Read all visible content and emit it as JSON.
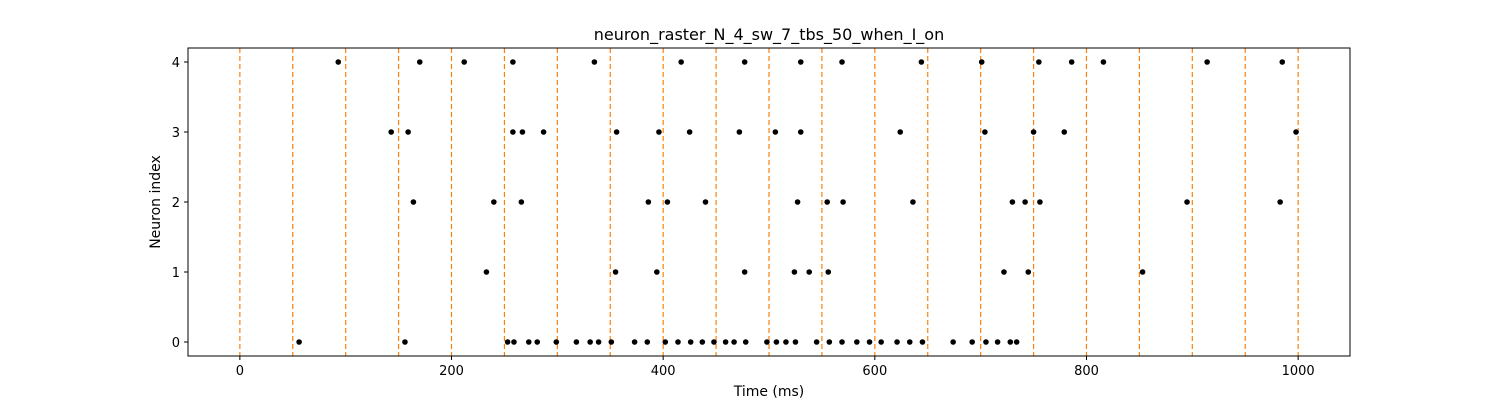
{
  "chart_data": {
    "type": "scatter",
    "title": "neuron_raster_N_4_sw_7_tbs_50_when_I_on",
    "xlabel": "Time (ms)",
    "ylabel": "Neuron index",
    "xlim": [
      -49,
      1049
    ],
    "ylim": [
      -0.2,
      4.2
    ],
    "xticks": [
      0,
      200,
      400,
      600,
      800,
      1000
    ],
    "yticks": [
      0,
      1,
      2,
      3,
      4
    ],
    "grid": false,
    "marker_color": "#000000",
    "vline_color": "#ff7f0e",
    "vline_style": "dashed",
    "vlines": [
      0,
      50,
      100,
      150,
      200,
      250,
      300,
      350,
      400,
      450,
      500,
      550,
      600,
      650,
      700,
      750,
      800,
      850,
      900,
      950,
      1000
    ],
    "spikes": [
      {
        "neuron": 4,
        "times": [
          93,
          170,
          212,
          258,
          335,
          417,
          477,
          530,
          569,
          644,
          701,
          755,
          786,
          816,
          914,
          985
        ]
      },
      {
        "neuron": 3,
        "times": [
          143,
          159,
          258,
          267,
          287,
          356,
          396,
          425,
          472,
          506,
          530,
          624,
          704,
          750,
          779,
          998
        ]
      },
      {
        "neuron": 2,
        "times": [
          164,
          240,
          266,
          386,
          404,
          440,
          527,
          555,
          570,
          636,
          730,
          742,
          756,
          895,
          983
        ]
      },
      {
        "neuron": 1,
        "times": [
          233,
          355,
          394,
          477,
          524,
          538,
          556,
          722,
          745,
          853
        ]
      },
      {
        "neuron": 0,
        "times": [
          56,
          156,
          253,
          259,
          273,
          281,
          299,
          318,
          331,
          339,
          351,
          373,
          385,
          402,
          414,
          426,
          437,
          448,
          459,
          467,
          478,
          498,
          507,
          516,
          525,
          545,
          557,
          569,
          583,
          595,
          606,
          621,
          633,
          645,
          674,
          692,
          705,
          716,
          728,
          734
        ]
      }
    ]
  }
}
